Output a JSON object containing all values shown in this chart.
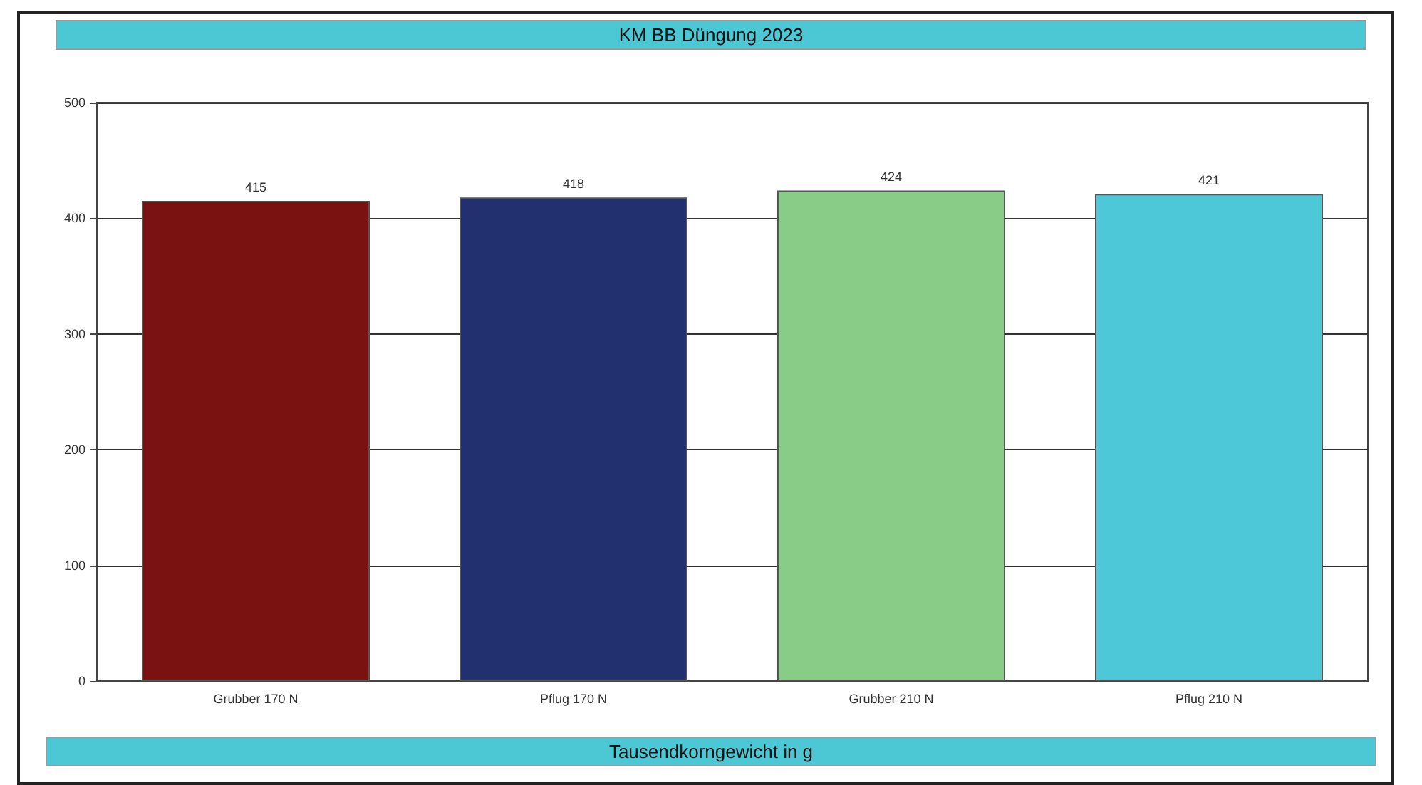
{
  "chart_data": {
    "type": "bar",
    "title": "KM BB Düngung 2023",
    "xlabel": "Tausendkorngewicht in g",
    "categories": [
      "Grubber 170 N",
      "Pflug 170 N",
      "Grubber 210 N",
      "Pflug 210 N"
    ],
    "values": [
      415,
      418,
      424,
      421
    ],
    "colors": [
      "#7a1212",
      "#233070",
      "#88cc88",
      "#4cc8d8"
    ],
    "ylim": [
      0,
      500
    ],
    "yticks": [
      0,
      100,
      200,
      300,
      400,
      500
    ],
    "grid": "y",
    "data_labels": true
  }
}
